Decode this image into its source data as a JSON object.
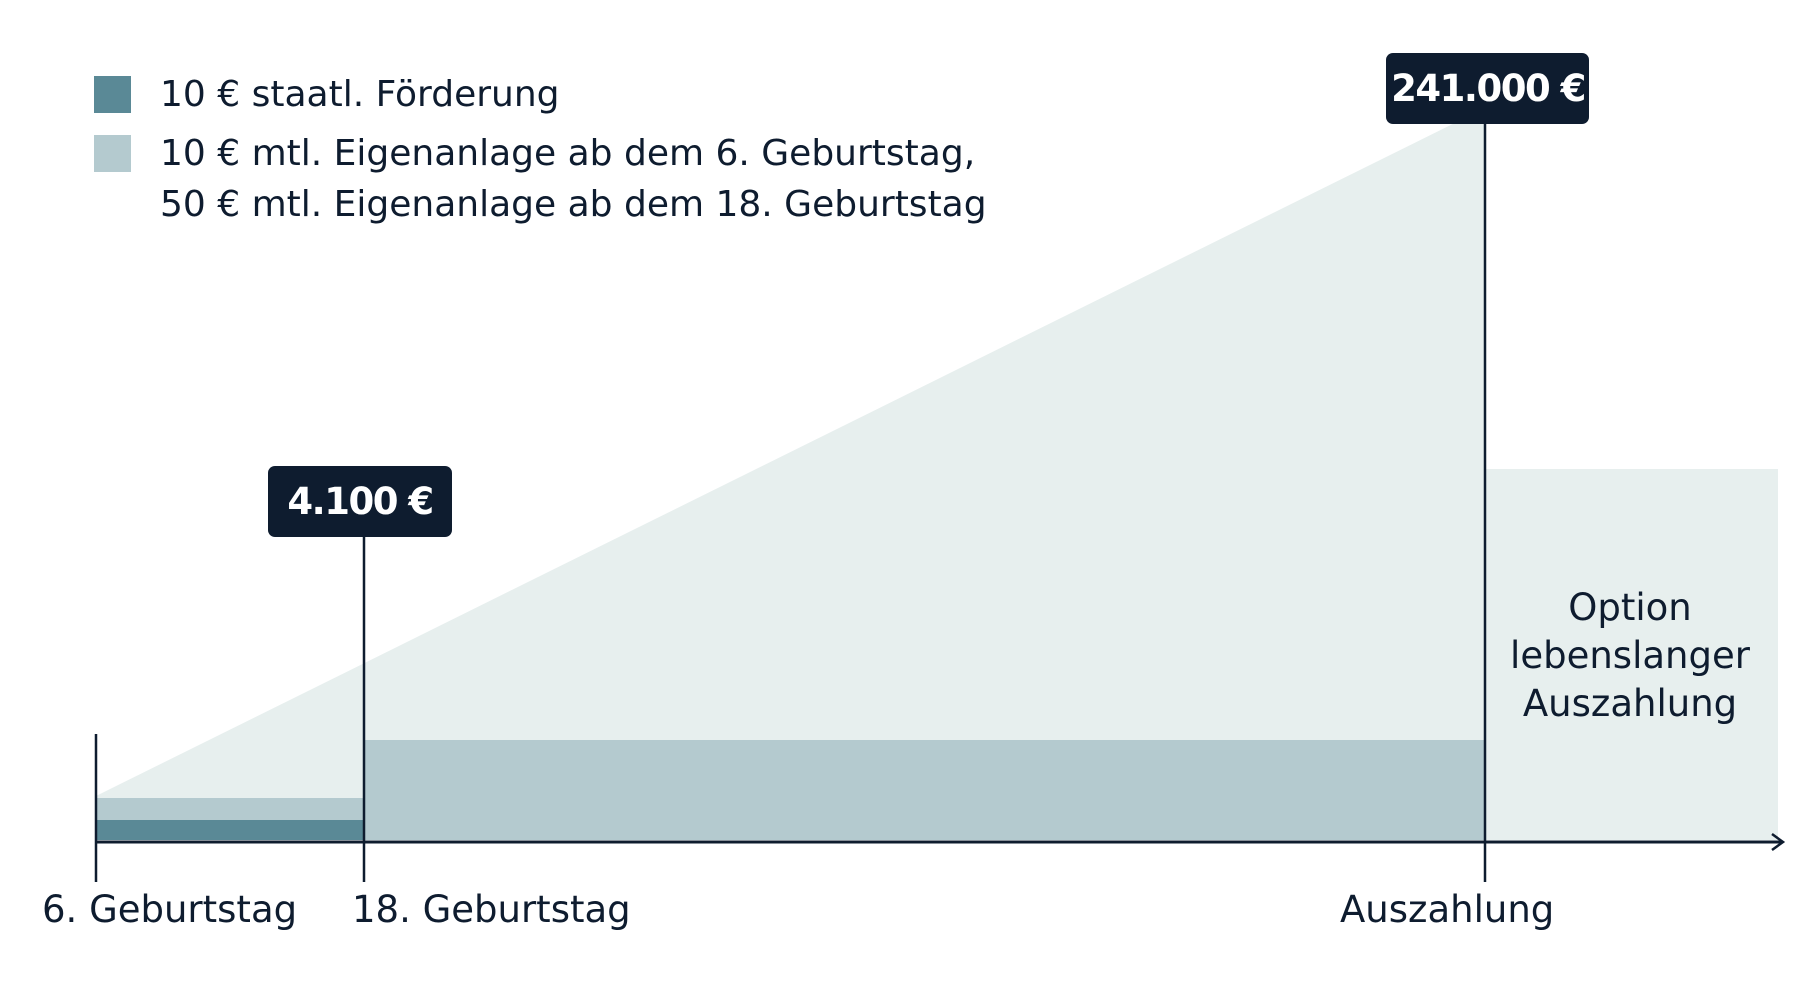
{
  "colors": {
    "state_funding": "#5a8996",
    "own_investment": "#b4cacf",
    "growth_area": "#e7efee",
    "ink": "#0e1c2f",
    "callout_bg": "#0e1c2f",
    "callout_text": "#ffffff"
  },
  "legend": {
    "items": [
      {
        "label": "10 € staatl. Förderung",
        "color_key": "state_funding"
      },
      {
        "label_line1": "10 € mtl. Eigenanlage ab dem 6. Geburtstag,",
        "label_line2": "50 € mtl. Eigenanlage ab dem 18. Geburtstag",
        "color_key": "own_investment"
      }
    ]
  },
  "timeline": {
    "markers": [
      {
        "label": "6. Geburtstag"
      },
      {
        "label": "18. Geburtstag"
      },
      {
        "label": "Auszahlung"
      }
    ]
  },
  "callouts": {
    "age18_value": "4.100 €",
    "payout_value": "241.000 €"
  },
  "option_box": {
    "line1": "Option",
    "line2": "lebenslanger",
    "line3": "Auszahlung"
  }
}
